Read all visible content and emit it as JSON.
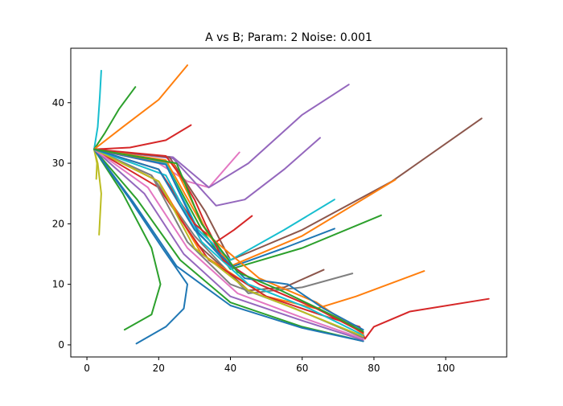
{
  "chart_data": {
    "type": "line",
    "title": "A vs B; Param: 2 Noise: 0.001",
    "xlabel": "",
    "ylabel": "",
    "xlim": [
      -4.5,
      117
    ],
    "ylim": [
      -2,
      49
    ],
    "x_ticks": [
      0,
      20,
      40,
      60,
      80,
      100
    ],
    "y_ticks": [
      0,
      10,
      20,
      30,
      40
    ],
    "grid": false,
    "legend": "none",
    "colors": [
      "#1f77b4",
      "#ff7f0e",
      "#2ca02c",
      "#d62728",
      "#9467bd",
      "#8c564b",
      "#e377c2",
      "#7f7f7f",
      "#bcbd22",
      "#17becf"
    ],
    "series": [
      {
        "color": "#17becf",
        "x": [
          2,
          3,
          3.6,
          4
        ],
        "y": [
          32.3,
          36,
          41,
          45.3
        ]
      },
      {
        "color": "#2ca02c",
        "x": [
          2,
          5,
          9,
          13.5
        ],
        "y": [
          32.3,
          35,
          39,
          42.6
        ]
      },
      {
        "color": "#ff7f0e",
        "x": [
          2,
          10,
          20,
          28
        ],
        "y": [
          32.3,
          36,
          40.5,
          46.2
        ]
      },
      {
        "color": "#d62728",
        "x": [
          2,
          12,
          22,
          29
        ],
        "y": [
          32.3,
          32.6,
          33.8,
          36.3
        ]
      },
      {
        "color": "#bcbd22",
        "x": [
          2,
          3,
          4,
          3.4
        ],
        "y": [
          32.3,
          30,
          25,
          18.2
        ]
      },
      {
        "color": "#bcbd22",
        "x": [
          2,
          2.8,
          2.6
        ],
        "y": [
          32.3,
          30,
          27.4
        ]
      },
      {
        "color": "#2ca02c",
        "x": [
          2,
          10,
          18,
          20.5,
          18,
          10.5
        ],
        "y": [
          32.3,
          25,
          16,
          10,
          5,
          2.5
        ]
      },
      {
        "color": "#1f77b4",
        "x": [
          2,
          12,
          21,
          28,
          27,
          22,
          13.8
        ],
        "y": [
          32.3,
          24,
          16,
          10,
          6,
          3,
          0.2
        ]
      },
      {
        "color": "#e377c2",
        "x": [
          2,
          20,
          28,
          34,
          42.5
        ],
        "y": [
          32.3,
          30,
          27,
          26,
          31.8
        ]
      },
      {
        "color": "#9467bd",
        "x": [
          2,
          24,
          34,
          45,
          60,
          73
        ],
        "y": [
          32.3,
          31,
          26,
          30,
          38,
          43
        ]
      },
      {
        "color": "#9467bd",
        "x": [
          2,
          24,
          36,
          44,
          55,
          65
        ],
        "y": [
          32.3,
          30.8,
          23,
          24,
          29,
          34.2
        ]
      },
      {
        "color": "#8c564b",
        "x": [
          2,
          23,
          33,
          40,
          60,
          85,
          110
        ],
        "y": [
          32.3,
          31,
          22,
          14,
          19,
          27,
          37.4
        ]
      },
      {
        "color": "#ff7f0e",
        "x": [
          2,
          22,
          32,
          40,
          60,
          86
        ],
        "y": [
          32.3,
          30.5,
          20,
          13,
          18,
          27.3
        ]
      },
      {
        "color": "#2ca02c",
        "x": [
          2,
          22,
          32,
          40,
          60,
          82
        ],
        "y": [
          32.3,
          30,
          19,
          12.5,
          16,
          21.4
        ]
      },
      {
        "color": "#17becf",
        "x": [
          2,
          22,
          31,
          40,
          55,
          69
        ],
        "y": [
          32.3,
          30,
          19,
          14,
          19,
          24
        ]
      },
      {
        "color": "#1f77b4",
        "x": [
          2,
          22,
          31,
          40,
          55,
          69
        ],
        "y": [
          32.3,
          29.8,
          18.6,
          12.8,
          16,
          19.2
        ]
      },
      {
        "color": "#d62728",
        "x": [
          2,
          20,
          30,
          36,
          41,
          46
        ],
        "y": [
          32.3,
          29,
          20,
          17,
          19,
          21.3
        ]
      },
      {
        "color": "#7f7f7f",
        "x": [
          2,
          18,
          30,
          45,
          60,
          74
        ],
        "y": [
          32.3,
          28,
          18,
          8.5,
          9.5,
          11.8
        ]
      },
      {
        "color": "#8c564b",
        "x": [
          2,
          20,
          30,
          45,
          55,
          66
        ],
        "y": [
          32.3,
          27,
          17,
          9,
          9.5,
          12.4
        ]
      },
      {
        "color": "#ff7f0e",
        "x": [
          2,
          20,
          32,
          50,
          64,
          75,
          94
        ],
        "y": [
          32.3,
          27,
          15,
          8,
          6,
          8,
          12.2
        ]
      },
      {
        "color": "#d62728",
        "x": [
          2,
          20,
          34,
          50,
          65,
          76,
          77.5,
          80,
          90,
          112
        ],
        "y": [
          32.3,
          26,
          14,
          8,
          5,
          3,
          1,
          3,
          5.5,
          7.6
        ]
      },
      {
        "color": "#2ca02c",
        "x": [
          2,
          14,
          26,
          40,
          60,
          77
        ],
        "y": [
          32.3,
          24,
          14,
          7,
          3,
          0.6
        ]
      },
      {
        "color": "#1f77b4",
        "x": [
          2,
          13,
          25,
          40,
          60,
          77
        ],
        "y": [
          32.3,
          23.5,
          13,
          6.5,
          2.8,
          0.6
        ]
      },
      {
        "color": "#9467bd",
        "x": [
          2,
          16,
          27,
          40,
          60,
          77
        ],
        "y": [
          32.3,
          25,
          15,
          8,
          4,
          0.8
        ]
      },
      {
        "color": "#e377c2",
        "x": [
          2,
          17,
          28,
          42,
          60,
          77
        ],
        "y": [
          32.3,
          26,
          16,
          8.5,
          4.5,
          1
        ]
      },
      {
        "color": "#7f7f7f",
        "x": [
          2,
          18,
          28,
          40,
          58,
          77
        ],
        "y": [
          32.3,
          28,
          17,
          10,
          6,
          1.2
        ]
      },
      {
        "color": "#bcbd22",
        "x": [
          2,
          20,
          30,
          45,
          62,
          77
        ],
        "y": [
          32.3,
          27,
          16,
          9,
          5,
          1.4
        ]
      },
      {
        "color": "#17becf",
        "x": [
          2,
          22,
          32,
          45,
          62,
          77
        ],
        "y": [
          32.3,
          28,
          17,
          10,
          6,
          1.6
        ]
      },
      {
        "color": "#ff7f0e",
        "x": [
          2,
          24,
          34,
          48,
          64,
          77
        ],
        "y": [
          32.3,
          30,
          18,
          11,
          7,
          1.8
        ]
      },
      {
        "color": "#d62728",
        "x": [
          2,
          22,
          26,
          30,
          33,
          38,
          48,
          64,
          77
        ],
        "y": [
          32.3,
          31.2,
          28,
          24,
          20,
          14,
          10,
          6,
          2
        ]
      },
      {
        "color": "#1f77b4",
        "x": [
          2,
          20,
          30,
          44,
          56,
          66,
          77
        ],
        "y": [
          32.3,
          29,
          19,
          11,
          10,
          6,
          2.5
        ]
      },
      {
        "color": "#2ca02c",
        "x": [
          2,
          25,
          32,
          42,
          54,
          68,
          77
        ],
        "y": [
          32.3,
          30,
          20,
          12,
          9,
          5,
          2.2
        ]
      }
    ]
  }
}
